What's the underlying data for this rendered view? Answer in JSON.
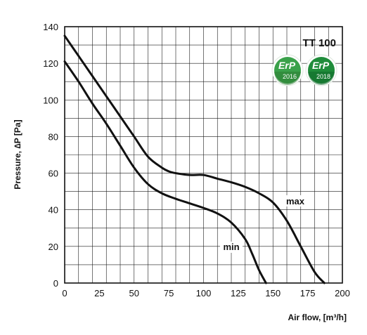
{
  "chart_data": {
    "type": "line",
    "title": "TT 100",
    "xlabel": "Air flow, [m³/h]",
    "ylabel": "Pressure, ∆P [Pa]",
    "xlim": [
      0,
      200
    ],
    "ylim": [
      0,
      140
    ],
    "x_ticks": [
      "0",
      "25",
      "50",
      "75",
      "100",
      "125",
      "150",
      "175",
      "200"
    ],
    "y_ticks": [
      "0",
      "20",
      "40",
      "60",
      "80",
      "100",
      "120",
      "140"
    ],
    "grid": true,
    "series": [
      {
        "name": "max",
        "x": [
          0,
          10,
          20,
          30,
          40,
          50,
          60,
          70,
          75,
          80,
          90,
          100,
          110,
          120,
          130,
          140,
          150,
          160,
          170,
          180,
          187
        ],
        "y": [
          135,
          124,
          113,
          102,
          91,
          80,
          69,
          63,
          61,
          60,
          59,
          59,
          57,
          55,
          52.5,
          49,
          44,
          34,
          20,
          6,
          0
        ]
      },
      {
        "name": "min",
        "x": [
          0,
          10,
          20,
          30,
          40,
          50,
          60,
          70,
          80,
          90,
          100,
          110,
          120,
          130,
          135,
          140,
          145
        ],
        "y": [
          121,
          110,
          98,
          87,
          75,
          63,
          54,
          49,
          46,
          43.5,
          41,
          38,
          33,
          24,
          16,
          7,
          0
        ]
      }
    ]
  },
  "badges": [
    {
      "name": "ErP",
      "year": "2016",
      "color": "#3aa14a"
    },
    {
      "name": "ErP",
      "year": "2018",
      "color": "#1f8c3a"
    }
  ]
}
